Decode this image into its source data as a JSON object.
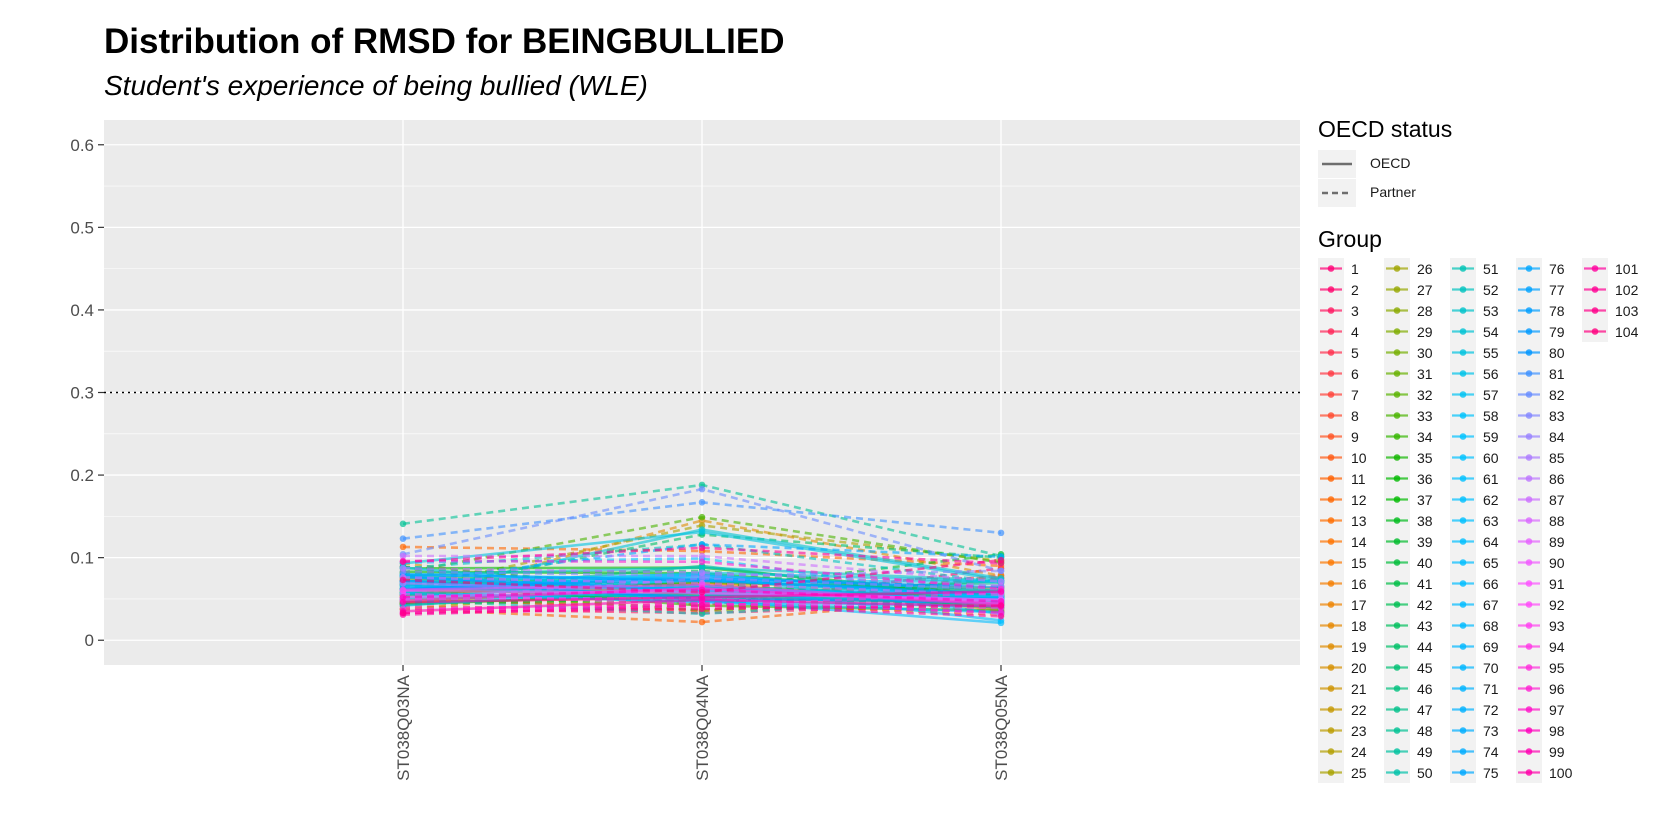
{
  "title": "Distribution of RMSD for BEINGBULLIED",
  "subtitle": "Student's experience of being bullied (WLE)",
  "chart_data": {
    "type": "line",
    "x_categories": [
      "ST038Q03NA",
      "ST038Q04NA",
      "ST038Q05NA"
    ],
    "ylim": [
      -0.03,
      0.63
    ],
    "y_ticks": [
      0,
      0.1,
      0.2,
      0.3,
      0.4,
      0.5,
      0.6
    ],
    "y_tick_labels": [
      "0",
      "0.1",
      "0.2",
      "0.3",
      "0.4",
      "0.5",
      "0.6"
    ],
    "reference_line": {
      "y": 0.3,
      "style": "dotted"
    },
    "grid": true,
    "legend_position": "right",
    "linetype_legend": {
      "title": "OECD status",
      "items": [
        {
          "label": "OECD",
          "dash": "solid"
        },
        {
          "label": "Partner",
          "dash": "dashed"
        }
      ]
    },
    "group_legend_title": "Group",
    "groups": [
      {
        "name": "1",
        "status": "Partner",
        "values": [
          0.041,
          0.037,
          0.048
        ]
      },
      {
        "name": "2",
        "status": "Partner",
        "values": [
          0.089,
          0.042,
          0.087
        ]
      },
      {
        "name": "3",
        "status": "Partner",
        "values": [
          0.038,
          0.033,
          0.043
        ]
      },
      {
        "name": "4",
        "status": "Partner",
        "values": [
          0.048,
          0.041,
          0.075
        ]
      },
      {
        "name": "5",
        "status": "Partner",
        "values": [
          0.054,
          0.052,
          0.065
        ]
      },
      {
        "name": "6",
        "status": "Partner",
        "values": [
          0.068,
          0.068,
          0.076
        ]
      },
      {
        "name": "7",
        "status": "Partner",
        "values": [
          0.049,
          0.067,
          0.072
        ]
      },
      {
        "name": "8",
        "status": "Partner",
        "values": [
          0.052,
          0.035,
          0.079
        ]
      },
      {
        "name": "9",
        "status": "Partner",
        "values": [
          0.059,
          0.043,
          0.034
        ]
      },
      {
        "name": "10",
        "status": "Partner",
        "values": [
          0.052,
          0.071,
          0.054
        ]
      },
      {
        "name": "11",
        "status": "Partner",
        "values": [
          0.038,
          0.022,
          0.053
        ]
      },
      {
        "name": "12",
        "status": "Partner",
        "values": [
          0.113,
          0.108,
          0.09
        ]
      },
      {
        "name": "13",
        "status": "OECD",
        "values": [
          0.062,
          0.054,
          0.044
        ]
      },
      {
        "name": "14",
        "status": "OECD",
        "values": [
          0.046,
          0.052,
          0.045
        ]
      },
      {
        "name": "15",
        "status": "Partner",
        "values": [
          0.072,
          0.045,
          0.031
        ]
      },
      {
        "name": "16",
        "status": "Partner",
        "values": [
          0.044,
          0.071,
          0.033
        ]
      },
      {
        "name": "17",
        "status": "OECD",
        "values": [
          0.054,
          0.07,
          0.037
        ]
      },
      {
        "name": "18",
        "status": "Partner",
        "values": [
          0.076,
          0.046,
          0.035
        ]
      },
      {
        "name": "19",
        "status": "Partner",
        "values": [
          0.049,
          0.145,
          0.078
        ]
      },
      {
        "name": "20",
        "status": "Partner",
        "values": [
          0.093,
          0.052,
          0.054
        ]
      },
      {
        "name": "21",
        "status": "Partner",
        "values": [
          0.037,
          0.069,
          0.048
        ]
      },
      {
        "name": "22",
        "status": "OECD",
        "values": [
          0.076,
          0.057,
          0.046
        ]
      },
      {
        "name": "23",
        "status": "OECD",
        "values": [
          0.045,
          0.069,
          0.063
        ]
      },
      {
        "name": "24",
        "status": "OECD",
        "values": [
          0.058,
          0.063,
          0.043
        ]
      },
      {
        "name": "25",
        "status": "Partner",
        "values": [
          0.062,
          0.139,
          0.096
        ]
      },
      {
        "name": "26",
        "status": "OECD",
        "values": [
          0.044,
          0.057,
          0.054
        ]
      },
      {
        "name": "27",
        "status": "OECD",
        "values": [
          0.074,
          0.055,
          0.052
        ]
      },
      {
        "name": "28",
        "status": "Partner",
        "values": [
          0.071,
          0.066,
          0.056
        ]
      },
      {
        "name": "29",
        "status": "OECD",
        "values": [
          0.047,
          0.066,
          0.049
        ]
      },
      {
        "name": "30",
        "status": "Partner",
        "values": [
          0.061,
          0.036,
          0.045
        ]
      },
      {
        "name": "31",
        "status": "Partner",
        "values": [
          0.044,
          0.048,
          0.039
        ]
      },
      {
        "name": "32",
        "status": "Partner",
        "values": [
          0.072,
          0.063,
          0.045
        ]
      },
      {
        "name": "33",
        "status": "Partner",
        "values": [
          0.082,
          0.149,
          0.094
        ]
      },
      {
        "name": "34",
        "status": "OECD",
        "values": [
          0.068,
          0.042,
          0.036
        ]
      },
      {
        "name": "35",
        "status": "OECD",
        "values": [
          0.056,
          0.071,
          0.06
        ]
      },
      {
        "name": "36",
        "status": "OECD",
        "values": [
          0.083,
          0.081,
          0.053
        ]
      },
      {
        "name": "37",
        "status": "OECD",
        "values": [
          0.087,
          0.088,
          0.053
        ]
      },
      {
        "name": "38",
        "status": "OECD",
        "values": [
          0.043,
          0.058,
          0.055
        ]
      },
      {
        "name": "39",
        "status": "Partner",
        "values": [
          0.089,
          0.061,
          0.104
        ]
      },
      {
        "name": "40",
        "status": "Partner",
        "values": [
          0.045,
          0.05,
          0.045
        ]
      },
      {
        "name": "41",
        "status": "OECD",
        "values": [
          0.078,
          0.066,
          0.039
        ]
      },
      {
        "name": "42",
        "status": "Partner",
        "values": [
          0.066,
          0.067,
          0.047
        ]
      },
      {
        "name": "43",
        "status": "Partner",
        "values": [
          0.081,
          0.084,
          0.05
        ]
      },
      {
        "name": "44",
        "status": "Partner",
        "values": [
          0.058,
          0.128,
          0.1
        ]
      },
      {
        "name": "45",
        "status": "OECD",
        "values": [
          0.055,
          0.053,
          0.072
        ]
      },
      {
        "name": "46",
        "status": "OECD",
        "values": [
          0.05,
          0.057,
          0.043
        ]
      },
      {
        "name": "47",
        "status": "OECD",
        "values": [
          0.057,
          0.09,
          0.047
        ]
      },
      {
        "name": "48",
        "status": "Partner",
        "values": [
          0.141,
          0.188,
          0.102
        ]
      },
      {
        "name": "49",
        "status": "OECD",
        "values": [
          0.072,
          0.061,
          0.069
        ]
      },
      {
        "name": "50",
        "status": "Partner",
        "values": [
          0.046,
          0.066,
          0.049
        ]
      },
      {
        "name": "51",
        "status": "Partner",
        "values": [
          0.049,
          0.032,
          0.052
        ]
      },
      {
        "name": "52",
        "status": "Partner",
        "values": [
          0.087,
          0.116,
          0.07
        ]
      },
      {
        "name": "53",
        "status": "OECD",
        "values": [
          0.079,
          0.088,
          0.072
        ]
      },
      {
        "name": "54",
        "status": "OECD",
        "values": [
          0.056,
          0.134,
          0.075
        ]
      },
      {
        "name": "55",
        "status": "OECD",
        "values": [
          0.093,
          0.131,
          0.073
        ]
      },
      {
        "name": "56",
        "status": "OECD",
        "values": [
          0.061,
          0.082,
          0.071
        ]
      },
      {
        "name": "57",
        "status": "OECD",
        "values": [
          0.064,
          0.072,
          0.071
        ]
      },
      {
        "name": "58",
        "status": "OECD",
        "values": [
          0.051,
          0.074,
          0.052
        ]
      },
      {
        "name": "59",
        "status": "OECD",
        "values": [
          0.079,
          0.074,
          0.053
        ]
      },
      {
        "name": "60",
        "status": "OECD",
        "values": [
          0.088,
          0.056,
          0.052
        ]
      },
      {
        "name": "61",
        "status": "OECD",
        "values": [
          0.061,
          0.079,
          0.032
        ]
      },
      {
        "name": "62",
        "status": "Partner",
        "values": [
          0.094,
          0.099,
          0.049
        ]
      },
      {
        "name": "63",
        "status": "OECD",
        "values": [
          0.071,
          0.08,
          0.05
        ]
      },
      {
        "name": "64",
        "status": "OECD",
        "values": [
          0.042,
          0.066,
          0.024
        ]
      },
      {
        "name": "65",
        "status": "Partner",
        "values": [
          0.067,
          0.062,
          0.047
        ]
      },
      {
        "name": "66",
        "status": "OECD",
        "values": [
          0.066,
          0.049,
          0.021
        ]
      },
      {
        "name": "67",
        "status": "OECD",
        "values": [
          0.058,
          0.046,
          0.034
        ]
      },
      {
        "name": "68",
        "status": "OECD",
        "values": [
          0.062,
          0.065,
          0.047
        ]
      },
      {
        "name": "69",
        "status": "OECD",
        "values": [
          0.056,
          0.047,
          0.041
        ]
      },
      {
        "name": "70",
        "status": "OECD",
        "values": [
          0.069,
          0.061,
          0.055
        ]
      },
      {
        "name": "71",
        "status": "OECD",
        "values": [
          0.062,
          0.078,
          0.06
        ]
      },
      {
        "name": "72",
        "status": "OECD",
        "values": [
          0.067,
          0.053,
          0.05
        ]
      },
      {
        "name": "73",
        "status": "OECD",
        "values": [
          0.076,
          0.061,
          0.058
        ]
      },
      {
        "name": "74",
        "status": "OECD",
        "values": [
          0.078,
          0.048,
          0.051
        ]
      },
      {
        "name": "75",
        "status": "OECD",
        "values": [
          0.077,
          0.06,
          0.05
        ]
      },
      {
        "name": "76",
        "status": "Partner",
        "values": [
          0.07,
          0.116,
          0.101
        ]
      },
      {
        "name": "77",
        "status": "Partner",
        "values": [
          0.071,
          0.073,
          0.065
        ]
      },
      {
        "name": "78",
        "status": "OECD",
        "values": [
          0.08,
          0.072,
          0.057
        ]
      },
      {
        "name": "79",
        "status": "OECD",
        "values": [
          0.062,
          0.075,
          0.064
        ]
      },
      {
        "name": "80",
        "status": "OECD",
        "values": [
          0.072,
          0.051,
          0.045
        ]
      },
      {
        "name": "81",
        "status": "Partner",
        "values": [
          0.123,
          0.167,
          0.13
        ]
      },
      {
        "name": "82",
        "status": "Partner",
        "values": [
          0.104,
          0.183,
          0.084
        ]
      },
      {
        "name": "83",
        "status": "Partner",
        "values": [
          0.083,
          0.078,
          0.084
        ]
      },
      {
        "name": "84",
        "status": "Partner",
        "values": [
          0.049,
          0.075,
          0.062
        ]
      },
      {
        "name": "85",
        "status": "OECD",
        "values": [
          0.069,
          0.058,
          0.049
        ]
      },
      {
        "name": "86",
        "status": "Partner",
        "values": [
          0.087,
          0.082,
          0.066
        ]
      },
      {
        "name": "87",
        "status": "Partner",
        "values": [
          0.102,
          0.102,
          0.071
        ]
      },
      {
        "name": "88",
        "status": "Partner",
        "values": [
          0.076,
          0.069,
          0.055
        ]
      },
      {
        "name": "89",
        "status": "OECD",
        "values": [
          0.052,
          0.062,
          0.046
        ]
      },
      {
        "name": "90",
        "status": "OECD",
        "values": [
          0.06,
          0.057,
          0.049
        ]
      },
      {
        "name": "91",
        "status": "Partner",
        "values": [
          0.05,
          0.051,
          0.032
        ]
      },
      {
        "name": "92",
        "status": "Partner",
        "values": [
          0.056,
          0.044,
          0.039
        ]
      },
      {
        "name": "93",
        "status": "OECD",
        "values": [
          0.061,
          0.067,
          0.044
        ]
      },
      {
        "name": "94",
        "status": "Partner",
        "values": [
          0.038,
          0.041,
          0.058
        ]
      },
      {
        "name": "95",
        "status": "OECD",
        "values": [
          0.048,
          0.063,
          0.043
        ]
      },
      {
        "name": "96",
        "status": "Partner",
        "values": [
          0.096,
          0.095,
          0.062
        ]
      },
      {
        "name": "97",
        "status": "Partner",
        "values": [
          0.033,
          0.045,
          0.034
        ]
      },
      {
        "name": "98",
        "status": "Partner",
        "values": [
          0.052,
          0.061,
          0.047
        ]
      },
      {
        "name": "99",
        "status": "OECD",
        "values": [
          0.035,
          0.049,
          0.041
        ]
      },
      {
        "name": "100",
        "status": "OECD",
        "values": [
          0.046,
          0.052,
          0.059
        ]
      },
      {
        "name": "101",
        "status": "Partner",
        "values": [
          0.031,
          0.042,
          0.029
        ]
      },
      {
        "name": "102",
        "status": "Partner",
        "values": [
          0.095,
          0.112,
          0.093
        ]
      },
      {
        "name": "103",
        "status": "Partner",
        "values": [
          0.033,
          0.038,
          0.042
        ]
      },
      {
        "name": "104",
        "status": "Partner",
        "values": [
          0.073,
          0.058,
          0.097
        ]
      }
    ]
  }
}
